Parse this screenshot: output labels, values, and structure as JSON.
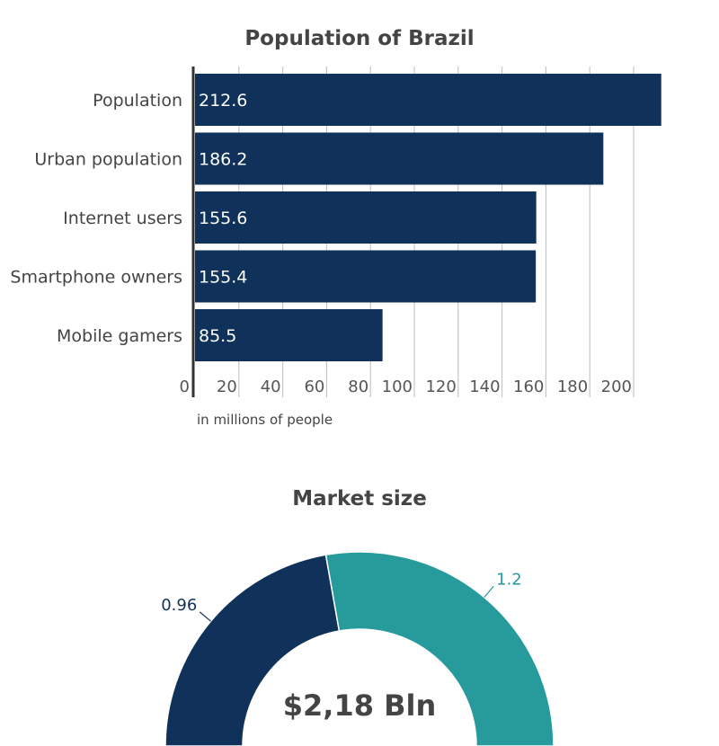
{
  "chart_data": [
    {
      "type": "bar",
      "orientation": "horizontal",
      "title": "Population of Brazil",
      "xlabel": "in millions of people",
      "categories": [
        "Population",
        "Urban population",
        "Internet users",
        "Smartphone owners",
        "Mobile gamers"
      ],
      "values": [
        212.6,
        186.2,
        155.6,
        155.4,
        85.5
      ],
      "data_labels": [
        "212.6",
        "186.2",
        "155.6",
        "155.4",
        "85.5"
      ],
      "x_ticks": [
        "0",
        "20",
        "40",
        "60",
        "80",
        "100",
        "120",
        "140",
        "160",
        "180",
        "200"
      ],
      "xlim": [
        0,
        220
      ],
      "grid": "vertical",
      "color": "#10325a"
    },
    {
      "type": "pie",
      "style": "half-donut",
      "title": "Market size",
      "center_text": "$2,18 Bln",
      "slices": [
        {
          "label": "0.96",
          "value": 0.96,
          "color": "#10325a"
        },
        {
          "label": "1.2",
          "value": 1.2,
          "color": "#279a9c"
        }
      ]
    }
  ]
}
